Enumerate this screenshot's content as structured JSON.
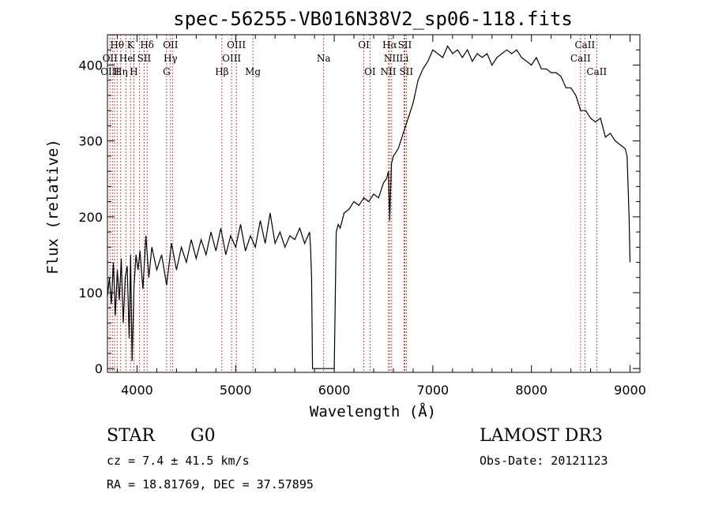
{
  "chart_data": {
    "type": "line",
    "title": "spec-56255-VB016N38V2_sp06-118.fits",
    "xlabel": "Wavelength (Å)",
    "ylabel": "Flux (relative)",
    "xlim": [
      3700,
      9100
    ],
    "ylim": [
      -5,
      440
    ],
    "xticks": [
      4000,
      5000,
      6000,
      7000,
      8000,
      9000
    ],
    "xtick_labels": [
      "4000",
      "5000",
      "6000",
      "7000",
      "8000",
      "9000"
    ],
    "yticks": [
      0,
      100,
      200,
      300,
      400
    ],
    "ytick_labels": [
      "0",
      "100",
      "200",
      "300",
      "400"
    ],
    "series": [
      {
        "name": "spectrum",
        "x": [
          3700,
          3720,
          3740,
          3760,
          3780,
          3800,
          3820,
          3840,
          3860,
          3880,
          3900,
          3920,
          3935,
          3950,
          3970,
          3990,
          4010,
          4030,
          4060,
          4090,
          4120,
          4150,
          4200,
          4250,
          4300,
          4350,
          4400,
          4450,
          4500,
          4550,
          4600,
          4650,
          4700,
          4750,
          4800,
          4850,
          4900,
          4950,
          5000,
          5050,
          5100,
          5150,
          5200,
          5250,
          5300,
          5350,
          5400,
          5450,
          5500,
          5550,
          5600,
          5650,
          5700,
          5750,
          5760,
          5770,
          5780,
          5800,
          5900,
          6000,
          6020,
          6040,
          6060,
          6100,
          6150,
          6200,
          6250,
          6300,
          6350,
          6400,
          6450,
          6500,
          6530,
          6550,
          6563,
          6580,
          6600,
          6650,
          6700,
          6750,
          6800,
          6850,
          6900,
          6950,
          7000,
          7050,
          7100,
          7150,
          7200,
          7250,
          7300,
          7350,
          7400,
          7450,
          7500,
          7550,
          7600,
          7650,
          7700,
          7750,
          7800,
          7850,
          7900,
          7950,
          8000,
          8050,
          8100,
          8150,
          8200,
          8250,
          8300,
          8350,
          8400,
          8450,
          8500,
          8550,
          8600,
          8650,
          8700,
          8750,
          8800,
          8850,
          8900,
          8950,
          8970,
          8990,
          9000
        ],
        "y": [
          95,
          120,
          85,
          140,
          70,
          130,
          90,
          145,
          60,
          120,
          135,
          40,
          150,
          10,
          110,
          150,
          130,
          155,
          105,
          175,
          120,
          160,
          130,
          150,
          110,
          165,
          130,
          160,
          140,
          170,
          145,
          170,
          150,
          180,
          155,
          185,
          150,
          175,
          160,
          190,
          155,
          175,
          160,
          195,
          165,
          205,
          165,
          180,
          160,
          175,
          170,
          185,
          165,
          180,
          160,
          120,
          0,
          0,
          0,
          0,
          180,
          190,
          185,
          205,
          210,
          220,
          215,
          225,
          220,
          230,
          225,
          245,
          250,
          260,
          195,
          270,
          280,
          290,
          310,
          330,
          350,
          380,
          395,
          405,
          420,
          415,
          410,
          425,
          415,
          420,
          410,
          420,
          405,
          415,
          410,
          415,
          400,
          410,
          415,
          420,
          415,
          420,
          410,
          405,
          400,
          410,
          395,
          395,
          390,
          390,
          385,
          370,
          370,
          360,
          340,
          340,
          330,
          325,
          330,
          305,
          310,
          300,
          295,
          290,
          280,
          200,
          140
        ]
      }
    ],
    "line_markers": {
      "wavelengths": [
        3726,
        3750,
        3771,
        3798,
        3835,
        3889,
        3934,
        3968,
        4026,
        4072,
        4102,
        4300,
        4340,
        4363,
        4861,
        4959,
        5007,
        5175,
        5893,
        6300,
        6363,
        6548,
        6563,
        6583,
        6708,
        6716,
        6731,
        8498,
        8542,
        8662
      ],
      "labels": [
        {
          "text": "Hθ",
          "wl": 3798,
          "row": 1
        },
        {
          "text": "K",
          "wl": 3934,
          "row": 1
        },
        {
          "text": "Hδ",
          "wl": 4102,
          "row": 1
        },
        {
          "text": "OII",
          "wl": 4340,
          "row": 1
        },
        {
          "text": "OIII",
          "wl": 5007,
          "row": 1
        },
        {
          "text": "OI",
          "wl": 6300,
          "row": 1
        },
        {
          "text": "Hα",
          "wl": 6563,
          "row": 1
        },
        {
          "text": "SII",
          "wl": 6716,
          "row": 1
        },
        {
          "text": "CaII",
          "wl": 8542,
          "row": 1
        },
        {
          "text": "OII",
          "wl": 3726,
          "row": 2
        },
        {
          "text": "He",
          "wl": 3889,
          "row": 2
        },
        {
          "text": "I",
          "wl": 3968,
          "row": 2
        },
        {
          "text": "SII",
          "wl": 4072,
          "row": 2
        },
        {
          "text": "Hγ",
          "wl": 4340,
          "row": 2
        },
        {
          "text": "OIII",
          "wl": 4959,
          "row": 2
        },
        {
          "text": "NII",
          "wl": 6583,
          "row": 2
        },
        {
          "text": "Li",
          "wl": 6708,
          "row": 2
        },
        {
          "text": "CaII",
          "wl": 8498,
          "row": 2
        },
        {
          "text": "OIII",
          "wl": 3726,
          "row": 3
        },
        {
          "text": "Hη",
          "wl": 3835,
          "row": 3
        },
        {
          "text": "H",
          "wl": 3968,
          "row": 3
        },
        {
          "text": "G",
          "wl": 4300,
          "row": 3
        },
        {
          "text": "Hβ",
          "wl": 4861,
          "row": 3
        },
        {
          "text": "Mg",
          "wl": 5175,
          "row": 3
        },
        {
          "text": "Na",
          "wl": 5893,
          "row": 2
        },
        {
          "text": "OI",
          "wl": 6363,
          "row": 3
        },
        {
          "text": "NII",
          "wl": 6548,
          "row": 3
        },
        {
          "text": "SII",
          "wl": 6731,
          "row": 3
        },
        {
          "text": "CaII",
          "wl": 8662,
          "row": 3
        }
      ],
      "color": "#b02020"
    }
  },
  "info": {
    "object_class": "STAR",
    "subclass": "G0",
    "survey": "LAMOST DR3",
    "cz": "cz = 7.4 ± 41.5 km/s",
    "obs_date": "Obs-Date: 20121123",
    "coords": "RA =  18.81769, DEC =  37.57895"
  }
}
